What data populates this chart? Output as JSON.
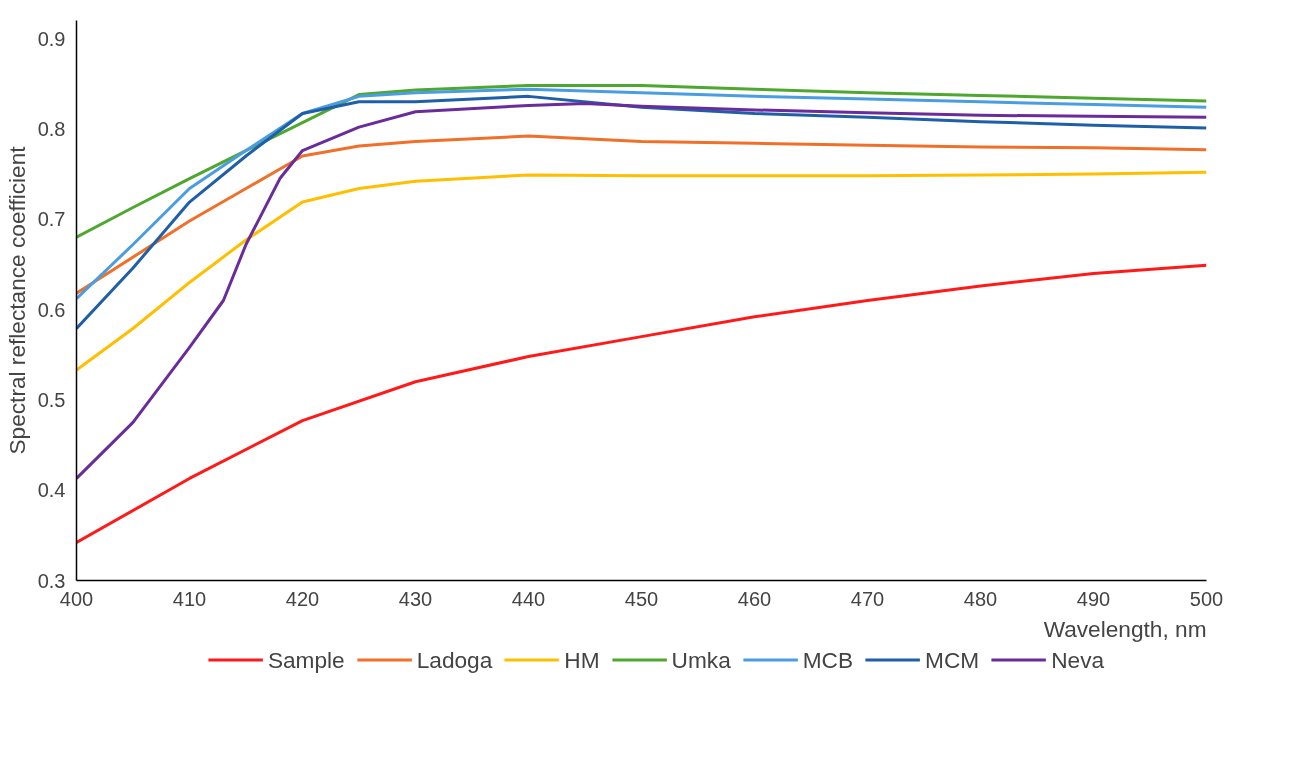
{
  "chart_data": {
    "type": "line",
    "xlabel": "Wavelength, nm",
    "ylabel": "Spectral reflectance coefficient",
    "xlim": [
      400,
      500
    ],
    "xticks": [
      400,
      410,
      420,
      430,
      440,
      450,
      460,
      470,
      480,
      490,
      500
    ],
    "ylim": [
      0.3,
      0.92
    ],
    "yticks": [
      {
        "value": 0.3,
        "label": "0.3"
      },
      {
        "value": 0.4,
        "label": "0.4"
      },
      {
        "value": 0.5,
        "label": "0.5"
      },
      {
        "value": 0.6,
        "label": "0.6"
      },
      {
        "value": 0.7,
        "label": "0.7"
      },
      {
        "value": 0.8,
        "label": "0.8"
      },
      {
        "value": 0.9,
        "label": "0.9"
      }
    ],
    "grid": false,
    "legend": "bottom",
    "marker": "none",
    "line_style": "solid",
    "series": [
      {
        "name": "Sample",
        "color": "#ff1a1a",
        "x": [
          400,
          410,
          420,
          430,
          440,
          450,
          460,
          470,
          480,
          490,
          500
        ],
        "values": [
          0.342,
          0.413,
          0.477,
          0.52,
          0.548,
          0.57,
          0.592,
          0.61,
          0.626,
          0.64,
          0.649
        ]
      },
      {
        "name": "Ladoga",
        "color": "#f0702a",
        "x": [
          400,
          410,
          415,
          420,
          425,
          430,
          440,
          450,
          460,
          470,
          480,
          490,
          500
        ],
        "values": [
          0.618,
          0.698,
          0.734,
          0.77,
          0.781,
          0.786,
          0.792,
          0.786,
          0.784,
          0.782,
          0.78,
          0.779,
          0.777
        ]
      },
      {
        "name": "HM",
        "color": "#ffbf00",
        "x": [
          400,
          405,
          410,
          415,
          420,
          425,
          430,
          440,
          450,
          460,
          470,
          480,
          490,
          500
        ],
        "values": [
          0.533,
          0.579,
          0.63,
          0.677,
          0.719,
          0.734,
          0.742,
          0.749,
          0.748,
          0.748,
          0.748,
          0.749,
          0.75,
          0.752
        ]
      },
      {
        "name": "Umka",
        "color": "#4ea72e",
        "x": [
          400,
          405,
          410,
          415,
          420,
          425,
          430,
          440,
          450,
          460,
          470,
          480,
          490,
          500
        ],
        "values": [
          0.68,
          0.713,
          0.745,
          0.776,
          0.807,
          0.838,
          0.843,
          0.848,
          0.848,
          0.844,
          0.84,
          0.837,
          0.834,
          0.831
        ]
      },
      {
        "name": "MCB",
        "color": "#4a9de0",
        "x": [
          400,
          405,
          410,
          415,
          420,
          425,
          430,
          440,
          450,
          460,
          470,
          480,
          490,
          500
        ],
        "values": [
          0.612,
          0.672,
          0.734,
          0.776,
          0.817,
          0.836,
          0.84,
          0.844,
          0.84,
          0.836,
          0.833,
          0.83,
          0.827,
          0.824
        ]
      },
      {
        "name": "MCM",
        "color": "#1f5fa8",
        "x": [
          400,
          405,
          410,
          415,
          420,
          425,
          430,
          440,
          450,
          460,
          470,
          480,
          490,
          500
        ],
        "values": [
          0.579,
          0.646,
          0.719,
          0.77,
          0.817,
          0.83,
          0.83,
          0.836,
          0.824,
          0.817,
          0.813,
          0.808,
          0.804,
          0.801
        ]
      },
      {
        "name": "Neva",
        "color": "#6a2c9a",
        "x": [
          400,
          405,
          410,
          413,
          415,
          418,
          420,
          425,
          430,
          440,
          445,
          450,
          460,
          470,
          480,
          490,
          500
        ],
        "values": [
          0.413,
          0.475,
          0.558,
          0.61,
          0.672,
          0.745,
          0.776,
          0.802,
          0.819,
          0.826,
          0.828,
          0.825,
          0.821,
          0.818,
          0.815,
          0.814,
          0.813
        ]
      }
    ]
  }
}
